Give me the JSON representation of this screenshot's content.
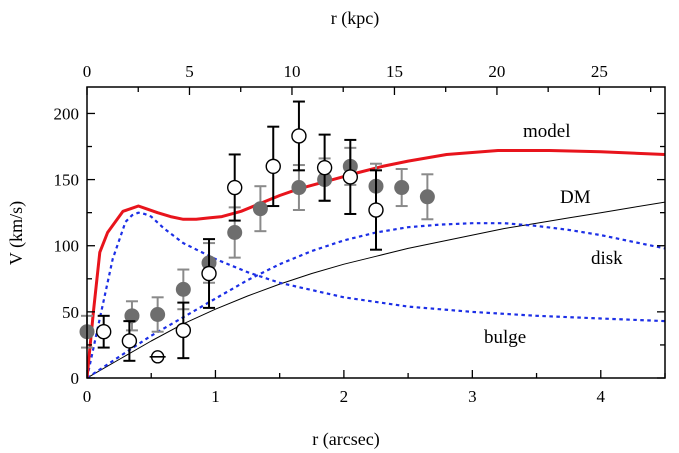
{
  "chart_data": {
    "type": "line",
    "ylabel": "V (km/s)",
    "xlabel_bottom": "r (arcsec)",
    "xlabel_top": "r (kpc)",
    "xlim": [
      0,
      4.5
    ],
    "ylim": [
      0,
      220
    ],
    "xlim_top_kpc": [
      0,
      28.2
    ],
    "xticks": [
      0,
      1,
      2,
      3,
      4
    ],
    "yticks": [
      0,
      50,
      100,
      150,
      200
    ],
    "xticks_top": [
      0,
      5,
      10,
      15,
      20,
      25
    ],
    "series": [
      {
        "name": "model",
        "label": "model",
        "style": "solid",
        "color": "#e8141c",
        "x": [
          0,
          0.05,
          0.1,
          0.16,
          0.22,
          0.28,
          0.34,
          0.4,
          0.46,
          0.55,
          0.65,
          0.75,
          0.85,
          0.95,
          1.05,
          1.2,
          1.35,
          1.5,
          1.65,
          1.8,
          1.95,
          2.1,
          2.3,
          2.5,
          2.8,
          3.2,
          3.6,
          4.0,
          4.5
        ],
        "y": [
          0,
          50,
          95,
          110,
          118,
          126,
          128,
          130,
          128,
          125,
          122,
          120,
          120,
          121,
          122,
          126,
          132,
          138,
          143,
          147,
          151,
          155,
          160,
          164,
          169,
          172,
          172,
          171,
          169
        ]
      },
      {
        "name": "DM",
        "label": "DM",
        "style": "solid-thin",
        "color": "#000000",
        "x": [
          0,
          0.25,
          0.5,
          0.75,
          1.0,
          1.25,
          1.5,
          1.75,
          2.0,
          2.25,
          2.5,
          2.75,
          3.0,
          3.25,
          3.5,
          3.75,
          4.0,
          4.25,
          4.5
        ],
        "y": [
          0,
          14,
          28,
          41,
          52,
          62,
          71,
          79,
          86,
          92,
          98,
          103,
          108,
          113,
          117,
          121,
          125,
          129,
          133
        ]
      },
      {
        "name": "disk",
        "label": "disk",
        "style": "dotted",
        "color": "#1c2fe6",
        "x": [
          0,
          0.25,
          0.5,
          0.75,
          1.0,
          1.25,
          1.5,
          1.75,
          2.0,
          2.25,
          2.5,
          2.75,
          3.0,
          3.25,
          3.5,
          3.75,
          4.0,
          4.25,
          4.5
        ],
        "y": [
          0,
          16,
          32,
          46,
          60,
          74,
          86,
          96,
          104,
          110,
          114,
          116,
          117,
          117,
          115,
          112,
          108,
          103,
          98
        ]
      },
      {
        "name": "bulge",
        "label": "bulge",
        "style": "dotted",
        "color": "#1c2fe6",
        "x": [
          0,
          0.1,
          0.2,
          0.3,
          0.35,
          0.4,
          0.45,
          0.5,
          0.6,
          0.75,
          1.0,
          1.25,
          1.5,
          2.0,
          2.5,
          3.0,
          3.5,
          4.0,
          4.5
        ],
        "y": [
          0,
          45,
          90,
          118,
          123,
          125,
          124,
          122,
          113,
          102,
          90,
          80,
          72,
          61,
          54,
          50,
          47,
          45,
          43
        ]
      }
    ],
    "points_filled": {
      "name": "filled data points",
      "x": [
        0.0,
        0.35,
        0.55,
        0.75,
        0.95,
        1.15,
        1.35,
        1.65,
        1.85,
        2.05,
        2.25,
        2.45,
        2.65
      ],
      "y": [
        35,
        47,
        48,
        67,
        87,
        110,
        128,
        144,
        150,
        160,
        145,
        144,
        137
      ],
      "err": [
        12,
        11,
        13,
        15,
        15,
        19,
        17,
        17,
        16,
        14,
        17,
        14,
        17
      ]
    },
    "points_open": {
      "name": "open data points",
      "x": [
        0.13,
        0.33,
        0.75,
        0.95,
        1.15,
        1.45,
        1.65,
        1.85,
        2.05,
        2.25
      ],
      "y": [
        35,
        28,
        36,
        79,
        144,
        160,
        183,
        159,
        152,
        127
      ],
      "err": [
        12,
        15,
        21,
        26,
        25,
        30,
        26,
        25,
        28,
        30
      ]
    },
    "point_crossed": {
      "name": "crossed data point",
      "x": 0.55,
      "y": 16
    }
  }
}
